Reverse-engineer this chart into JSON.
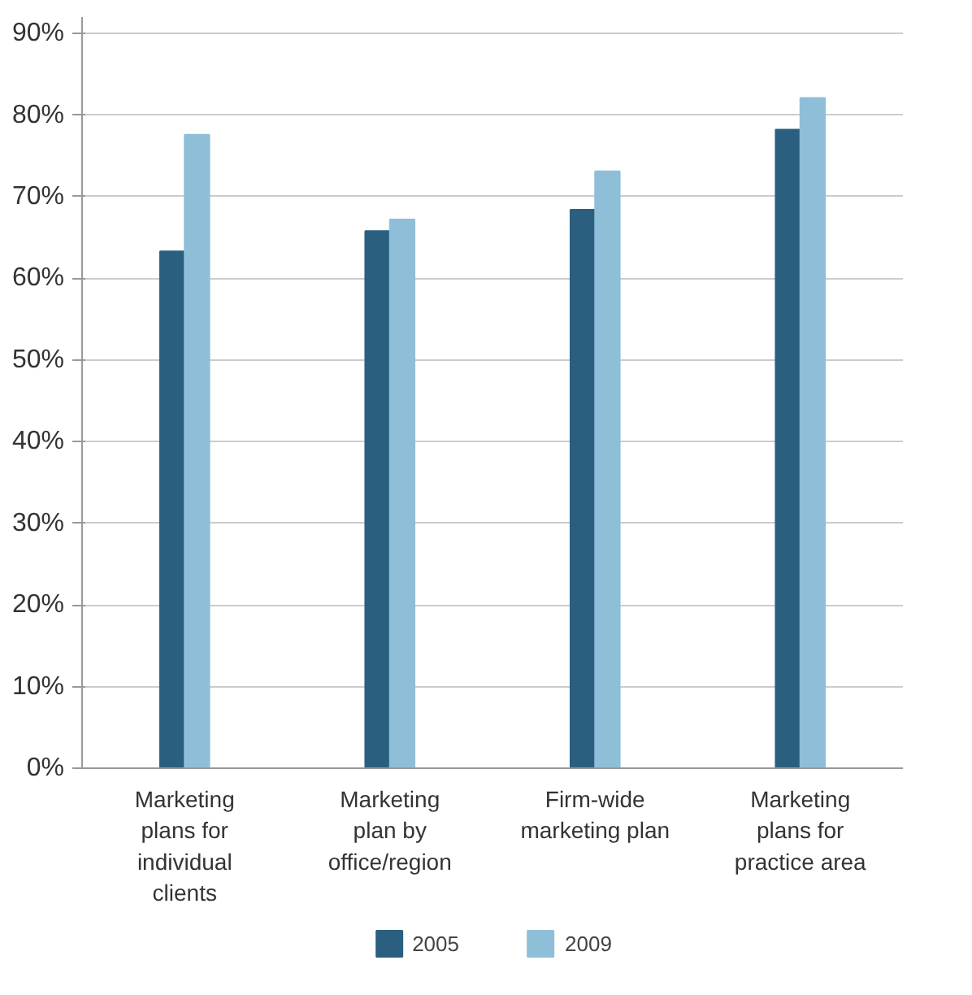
{
  "chart_data": {
    "type": "bar",
    "categories": [
      "Marketing\nplans for\nindividual\nclients",
      "Marketing\nplan by\noffice/region",
      "Firm-wide\nmarketing plan",
      "Marketing\nplans for\npractice area"
    ],
    "series": [
      {
        "name": "2005",
        "color": "#2b5f80",
        "values": [
          63.3,
          65.8,
          68.4,
          78.2
        ]
      },
      {
        "name": "2009",
        "color": "#8fbfd8",
        "values": [
          77.6,
          67.2,
          73.1,
          82.1
        ]
      }
    ],
    "ylim": [
      0,
      92
    ],
    "yticks": [
      {
        "value": 0,
        "label": "0%"
      },
      {
        "value": 10,
        "label": "10%"
      },
      {
        "value": 20,
        "label": "20%"
      },
      {
        "value": 30,
        "label": "30%"
      },
      {
        "value": 40,
        "label": "40%"
      },
      {
        "value": 50,
        "label": "50%"
      },
      {
        "value": 60,
        "label": "60%"
      },
      {
        "value": 70,
        "label": "70%"
      },
      {
        "value": 80,
        "label": "80%"
      },
      {
        "value": 90,
        "label": "90%"
      }
    ],
    "grid": "y",
    "legend": "bottom"
  }
}
